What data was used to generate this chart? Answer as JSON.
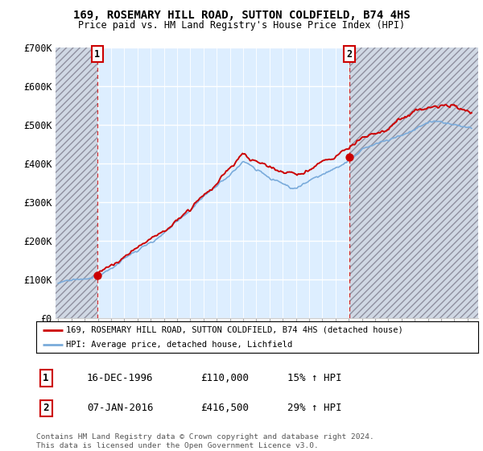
{
  "title": "169, ROSEMARY HILL ROAD, SUTTON COLDFIELD, B74 4HS",
  "subtitle": "Price paid vs. HM Land Registry's House Price Index (HPI)",
  "legend_line1": "169, ROSEMARY HILL ROAD, SUTTON COLDFIELD, B74 4HS (detached house)",
  "legend_line2": "HPI: Average price, detached house, Lichfield",
  "sale1_label": "1",
  "sale1_date": "16-DEC-1996",
  "sale1_price": "£110,000",
  "sale1_hpi": "15% ↑ HPI",
  "sale2_label": "2",
  "sale2_date": "07-JAN-2016",
  "sale2_price": "£416,500",
  "sale2_hpi": "29% ↑ HPI",
  "footer": "Contains HM Land Registry data © Crown copyright and database right 2024.\nThis data is licensed under the Open Government Licence v3.0.",
  "price_color": "#cc0000",
  "hpi_color": "#7aabdb",
  "sale_marker_color": "#cc0000",
  "dashed_line_color": "#cc0000",
  "chart_bg_color": "#ddeeff",
  "hatch_color": "#c8c8c8",
  "ylim": [
    0,
    700000
  ],
  "yticks": [
    0,
    100000,
    200000,
    300000,
    400000,
    500000,
    600000,
    700000
  ],
  "ytick_labels": [
    "£0",
    "£100K",
    "£200K",
    "£300K",
    "£400K",
    "£500K",
    "£600K",
    "£700K"
  ],
  "sale1_year": 1996.96,
  "sale1_value": 110000,
  "sale2_year": 2016.03,
  "sale2_value": 416500,
  "xmin": 1993.8,
  "xmax": 2025.8,
  "xtick_start": 1994,
  "xtick_end": 2025
}
